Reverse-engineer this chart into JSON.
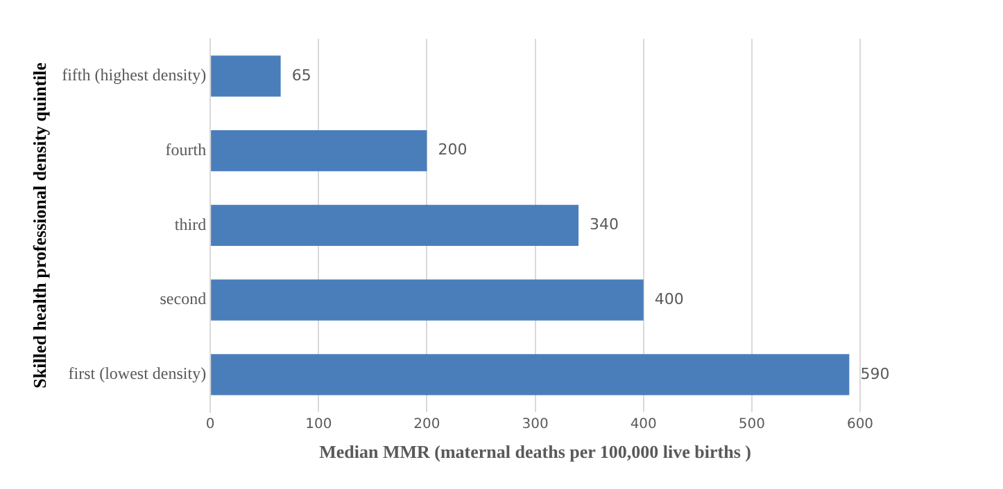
{
  "chart_data": {
    "type": "bar",
    "orientation": "horizontal",
    "categories": [
      "fifth (highest density)",
      "fourth",
      "third",
      "second",
      "first (lowest density)"
    ],
    "values": [
      65,
      200,
      340,
      400,
      590
    ],
    "color": "#4a7ebb",
    "data_labels": true,
    "xlabel": "Median MMR (maternal deaths per 100,000 live births )",
    "ylabel": "Skilled health professional density quintile",
    "xlim": [
      0,
      600
    ],
    "xticks": [
      0,
      100,
      200,
      300,
      400,
      500,
      600
    ],
    "grid": "x",
    "legend": false
  }
}
